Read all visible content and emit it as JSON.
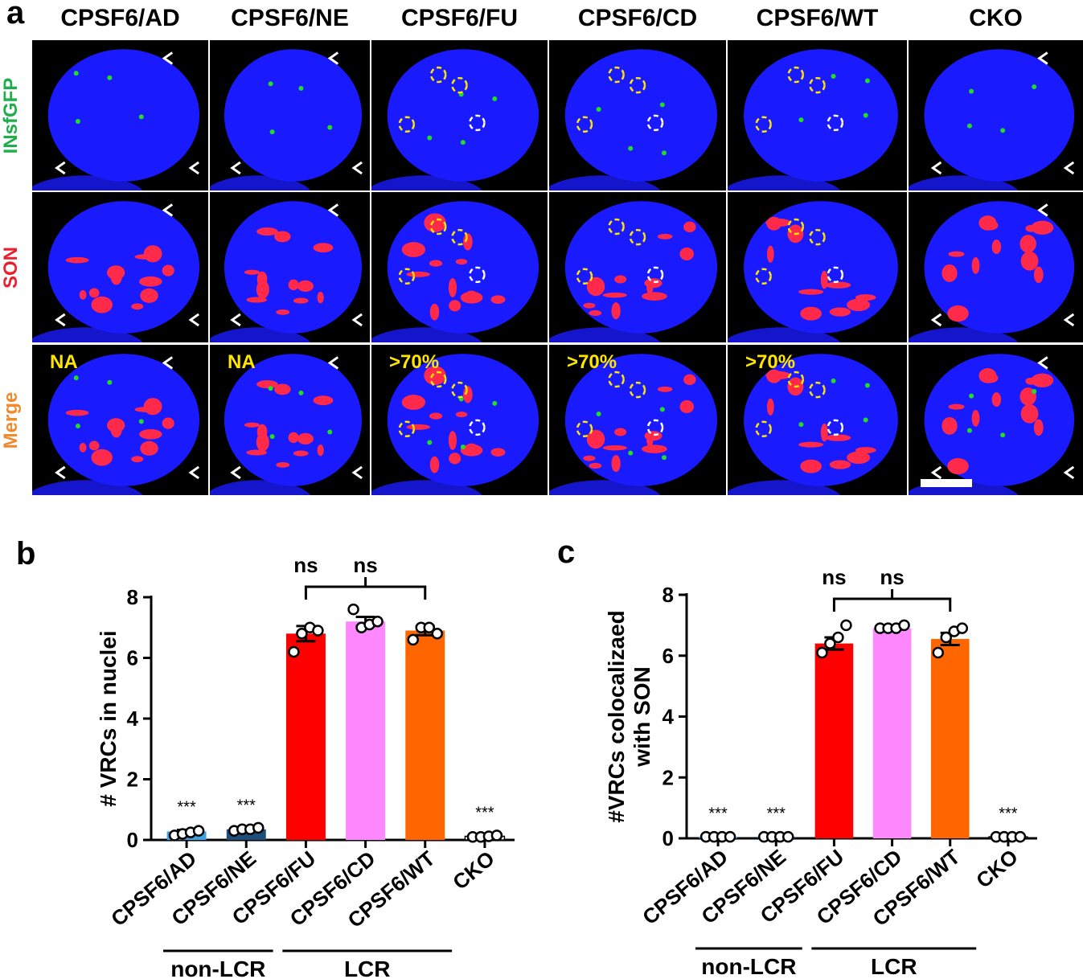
{
  "panel_a": {
    "letter": "a",
    "column_headers": [
      "CPSF6/AD",
      "CPSF6/NE",
      "CPSF6/FU",
      "CPSF6/CD",
      "CPSF6/WT",
      "CKO"
    ],
    "row_labels": [
      {
        "text": "INsfGFP",
        "color": "#1fae4b"
      },
      {
        "text": "SON",
        "color": "#e8222d"
      },
      {
        "text": "Merge",
        "color": "#f08a2c"
      }
    ],
    "merge_annotations": [
      "NA",
      "NA",
      ">70%",
      ">70%",
      ">70%",
      ""
    ],
    "colors": {
      "nucleus": "#1a1aff",
      "speckle": "#ff2a4a",
      "vrc": "#22dd22",
      "annotation": "#ffe600"
    }
  },
  "chart_data": [
    {
      "panel": "b",
      "type": "bar",
      "categories": [
        "CPSF6/AD",
        "CPSF6/NE",
        "CPSF6/FU",
        "CPSF6/CD",
        "CPSF6/WT",
        "CKO"
      ],
      "values": [
        0.28,
        0.35,
        6.8,
        7.2,
        6.9,
        0.12
      ],
      "error": [
        0.05,
        0.04,
        0.25,
        0.15,
        0.15,
        0.03
      ],
      "points": [
        [
          0.15,
          0.2,
          0.25,
          0.3
        ],
        [
          0.3,
          0.35,
          0.35,
          0.4
        ],
        [
          6.2,
          6.8,
          7.0,
          6.9
        ],
        [
          7.6,
          7.0,
          7.1,
          7.2
        ],
        [
          6.6,
          7.0,
          7.0,
          6.8
        ],
        [
          0.1,
          0.1,
          0.12,
          0.15
        ]
      ],
      "colors": [
        "#3aa3e0",
        "#1d4f7a",
        "#ff0000",
        "#ff88ff",
        "#ff6600",
        "#ffffff"
      ],
      "ylabel": "# VRCs in nuclei",
      "ylim": [
        0,
        8
      ],
      "yticks": [
        0,
        2,
        4,
        6,
        8
      ],
      "significance": [
        "***",
        "***",
        "ns",
        "ns",
        "",
        "***"
      ],
      "groups": [
        {
          "label": "non-LCR",
          "from": 0,
          "to": 1
        },
        {
          "label": "LCR",
          "from": 2,
          "to": 4
        }
      ],
      "grid": false
    },
    {
      "panel": "c",
      "type": "bar",
      "categories": [
        "CPSF6/AD",
        "CPSF6/NE",
        "CPSF6/FU",
        "CPSF6/CD",
        "CPSF6/WT",
        "CKO"
      ],
      "values": [
        0.05,
        0.05,
        6.4,
        6.9,
        6.55,
        0.05
      ],
      "error": [
        0.02,
        0.02,
        0.2,
        0.05,
        0.2,
        0.02
      ],
      "points": [
        [
          0.05,
          0.05,
          0.05,
          0.05
        ],
        [
          0.05,
          0.05,
          0.05,
          0.05
        ],
        [
          6.1,
          6.4,
          6.6,
          7.0
        ],
        [
          6.9,
          6.9,
          6.9,
          7.0
        ],
        [
          6.1,
          6.6,
          6.8,
          6.9
        ],
        [
          0.05,
          0.05,
          0.05,
          0.05
        ]
      ],
      "colors": [
        "#3aa3e0",
        "#1d4f7a",
        "#ff0000",
        "#ff88ff",
        "#ff6600",
        "#ffffff"
      ],
      "ylabel": "#VRCs colocalizaed with SON",
      "ylim": [
        0,
        8
      ],
      "yticks": [
        0,
        2,
        4,
        6,
        8
      ],
      "significance": [
        "***",
        "***",
        "ns",
        "ns",
        "",
        "***"
      ],
      "groups": [
        {
          "label": "non-LCR",
          "from": 0,
          "to": 1
        },
        {
          "label": "LCR",
          "from": 2,
          "to": 4
        }
      ],
      "grid": false
    }
  ]
}
